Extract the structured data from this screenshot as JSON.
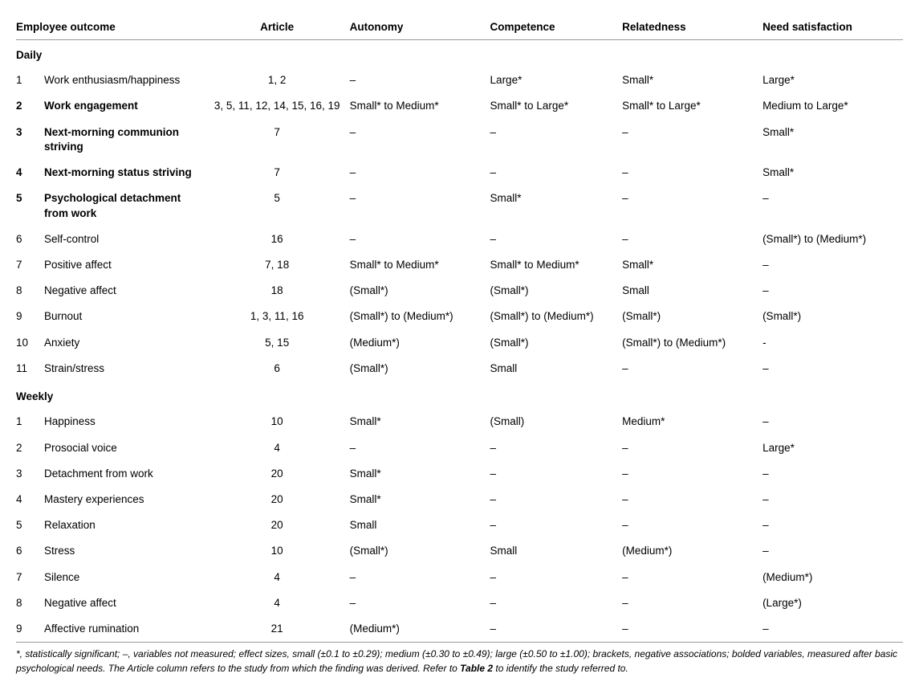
{
  "columns": {
    "outcome": "Employee outcome",
    "article": "Article",
    "autonomy": "Autonomy",
    "competence": "Competence",
    "relatedness": "Relatedness",
    "need": "Need satisfaction"
  },
  "sections": [
    {
      "title": "Daily",
      "rows": [
        {
          "n": "1",
          "bold": false,
          "outcome": "Work enthusiasm/happiness",
          "article": "1, 2",
          "autonomy": "–",
          "competence": "Large*",
          "relatedness": "Small*",
          "need": "Large*"
        },
        {
          "n": "2",
          "bold": true,
          "outcome": "Work engagement",
          "article": "3, 5, 11, 12, 14, 15, 16, 19",
          "autonomy": "Small* to Medium*",
          "competence": "Small* to Large*",
          "relatedness": "Small* to Large*",
          "need": "Medium to Large*"
        },
        {
          "n": "3",
          "bold": true,
          "outcome": "Next-morning communion striving",
          "article": "7",
          "autonomy": "–",
          "competence": "–",
          "relatedness": "–",
          "need": "Small*"
        },
        {
          "n": "4",
          "bold": true,
          "outcome": "Next-morning status striving",
          "article": "7",
          "autonomy": "–",
          "competence": "–",
          "relatedness": "–",
          "need": "Small*"
        },
        {
          "n": "5",
          "bold": true,
          "outcome": "Psychological detachment from work",
          "article": "5",
          "autonomy": "–",
          "competence": "Small*",
          "relatedness": "–",
          "need": "–"
        },
        {
          "n": "6",
          "bold": false,
          "outcome": "Self-control",
          "article": "16",
          "autonomy": "–",
          "competence": "–",
          "relatedness": "–",
          "need": "(Small*) to (Medium*)"
        },
        {
          "n": "7",
          "bold": false,
          "outcome": "Positive affect",
          "article": "7, 18",
          "autonomy": "Small* to Medium*",
          "competence": "Small* to Medium*",
          "relatedness": "Small*",
          "need": "–"
        },
        {
          "n": "8",
          "bold": false,
          "outcome": "Negative affect",
          "article": "18",
          "autonomy": "(Small*)",
          "competence": "(Small*)",
          "relatedness": "Small",
          "need": "–"
        },
        {
          "n": "9",
          "bold": false,
          "outcome": "Burnout",
          "article": "1, 3, 11, 16",
          "autonomy": "(Small*) to (Medium*)",
          "competence": "(Small*) to (Medium*)",
          "relatedness": "(Small*)",
          "need": "(Small*)"
        },
        {
          "n": "10",
          "bold": false,
          "outcome": "Anxiety",
          "article": "5, 15",
          "autonomy": "(Medium*)",
          "competence": "(Small*)",
          "relatedness": "(Small*) to (Medium*)",
          "need": "-"
        },
        {
          "n": "11",
          "bold": false,
          "outcome": "Strain/stress",
          "article": "6",
          "autonomy": "(Small*)",
          "competence": "Small",
          "relatedness": "–",
          "need": "–"
        }
      ]
    },
    {
      "title": "Weekly",
      "rows": [
        {
          "n": "1",
          "bold": false,
          "outcome": "Happiness",
          "article": "10",
          "autonomy": "Small*",
          "competence": "(Small)",
          "relatedness": "Medium*",
          "need": "–"
        },
        {
          "n": "2",
          "bold": false,
          "outcome": "Prosocial voice",
          "article": "4",
          "autonomy": "–",
          "competence": "–",
          "relatedness": "–",
          "need": "Large*"
        },
        {
          "n": "3",
          "bold": false,
          "outcome": "Detachment from work",
          "article": "20",
          "autonomy": "Small*",
          "competence": "–",
          "relatedness": "–",
          "need": "–"
        },
        {
          "n": "4",
          "bold": false,
          "outcome": "Mastery experiences",
          "article": "20",
          "autonomy": "Small*",
          "competence": "–",
          "relatedness": "–",
          "need": "–"
        },
        {
          "n": "5",
          "bold": false,
          "outcome": "Relaxation",
          "article": "20",
          "autonomy": "Small",
          "competence": "–",
          "relatedness": "–",
          "need": "–"
        },
        {
          "n": "6",
          "bold": false,
          "outcome": "Stress",
          "article": "10",
          "autonomy": "(Small*)",
          "competence": "Small",
          "relatedness": "(Medium*)",
          "need": "–"
        },
        {
          "n": "7",
          "bold": false,
          "outcome": "Silence",
          "article": "4",
          "autonomy": "–",
          "competence": "–",
          "relatedness": "–",
          "need": "(Medium*)"
        },
        {
          "n": "8",
          "bold": false,
          "outcome": "Negative affect",
          "article": "4",
          "autonomy": "–",
          "competence": "–",
          "relatedness": "–",
          "need": "(Large*)"
        },
        {
          "n": "9",
          "bold": false,
          "outcome": "Affective rumination",
          "article": "21",
          "autonomy": "(Medium*)",
          "competence": "–",
          "relatedness": "–",
          "need": "–"
        }
      ]
    }
  ],
  "footnote": {
    "pre": "*, statistically significant; –, variables not measured; effect sizes, small (±0.1 to ±0.29); medium (±0.30 to ±0.49); large (±0.50 to ±1.00); brackets, negative associations; bolded variables, measured after basic psychological needs. The Article column refers to the study from which the finding was derived. Refer to ",
    "bold": "Table 2",
    "post": " to identify the study referred to."
  }
}
